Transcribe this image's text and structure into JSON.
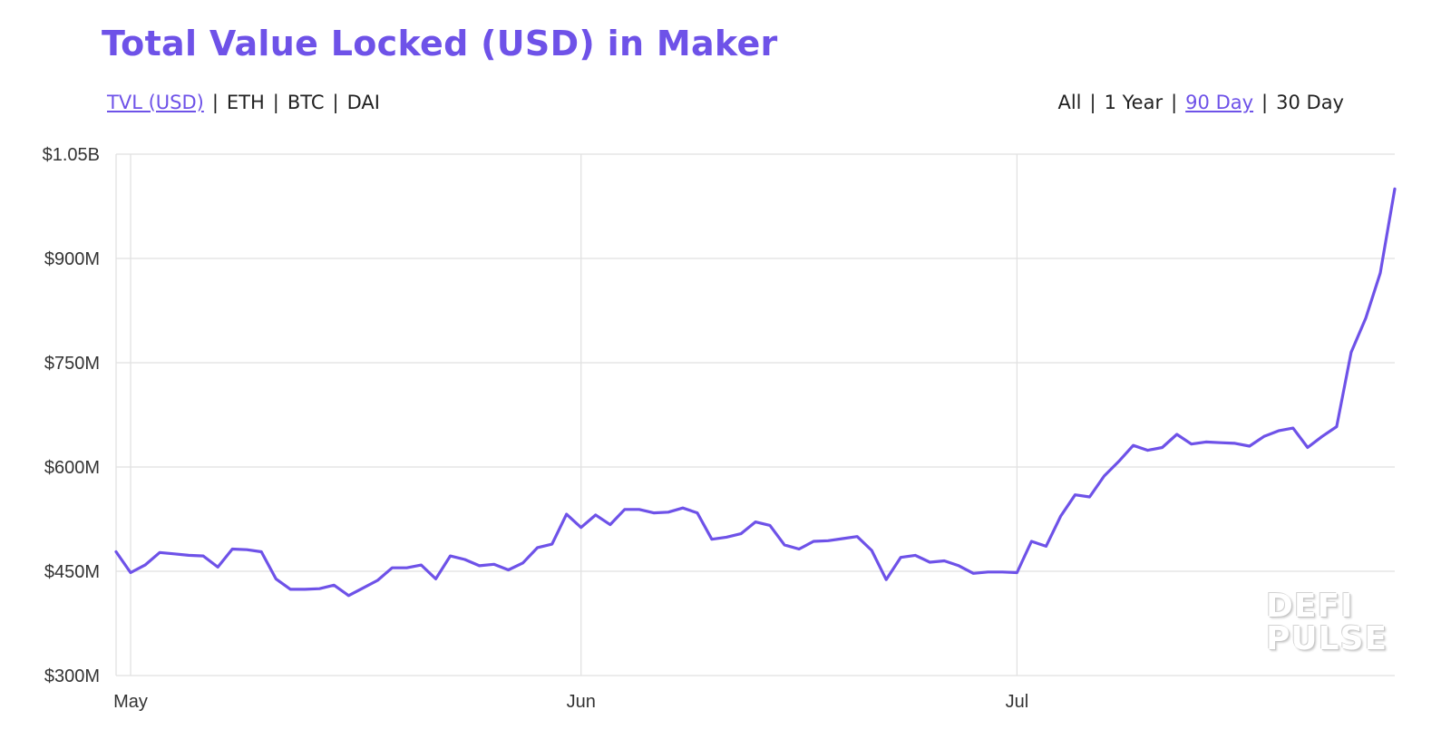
{
  "header": {
    "title": "Total Value Locked (USD) in Maker",
    "metric_options": [
      "TVL (USD)",
      "ETH",
      "BTC",
      "DAI"
    ],
    "metric_active": 0,
    "range_options": [
      "All",
      "1 Year",
      "90 Day",
      "30 Day"
    ],
    "range_active": 2
  },
  "watermark": {
    "line1": "DEFI",
    "line2": "PULSE"
  },
  "colors": {
    "accent": "#6e52e8",
    "line": "#6e52e8",
    "grid": "#e1e1e1",
    "text": "#222222"
  },
  "chart_data": {
    "type": "line",
    "title": "Total Value Locked (USD) in Maker",
    "xlabel": "",
    "ylabel": "",
    "x_tick_labels": [
      "May",
      "Jun",
      "Jul"
    ],
    "x_tick_day_index": [
      1,
      32,
      62
    ],
    "y_ticks": [
      300,
      450,
      600,
      750,
      900,
      1050
    ],
    "y_tick_labels": [
      "$300M",
      "$450M",
      "$600M",
      "$750M",
      "$900M",
      "$1.05B"
    ],
    "ylim": [
      300,
      1050
    ],
    "xlim_day_index": [
      0,
      88
    ],
    "grid": true,
    "legend": "none",
    "series": [
      {
        "units": "USD millions",
        "values": [
          478,
          448,
          459,
          477,
          475,
          473,
          472,
          456,
          482,
          481,
          478,
          439,
          424,
          424,
          425,
          430,
          415,
          426,
          437,
          455,
          455,
          459,
          439,
          472,
          467,
          458,
          460,
          452,
          462,
          484,
          489,
          532,
          513,
          531,
          517,
          539,
          539,
          534,
          535,
          541,
          534,
          496,
          499,
          504,
          521,
          516,
          488,
          482,
          493,
          494,
          497,
          500,
          480,
          438,
          470,
          473,
          463,
          465,
          458,
          447,
          449,
          449,
          448,
          493,
          486,
          529,
          560,
          557,
          587,
          608,
          631,
          624,
          628,
          647,
          633,
          636,
          635,
          634,
          630,
          644,
          652,
          656,
          628,
          644,
          658,
          765,
          814,
          879,
          1000
        ]
      }
    ]
  }
}
